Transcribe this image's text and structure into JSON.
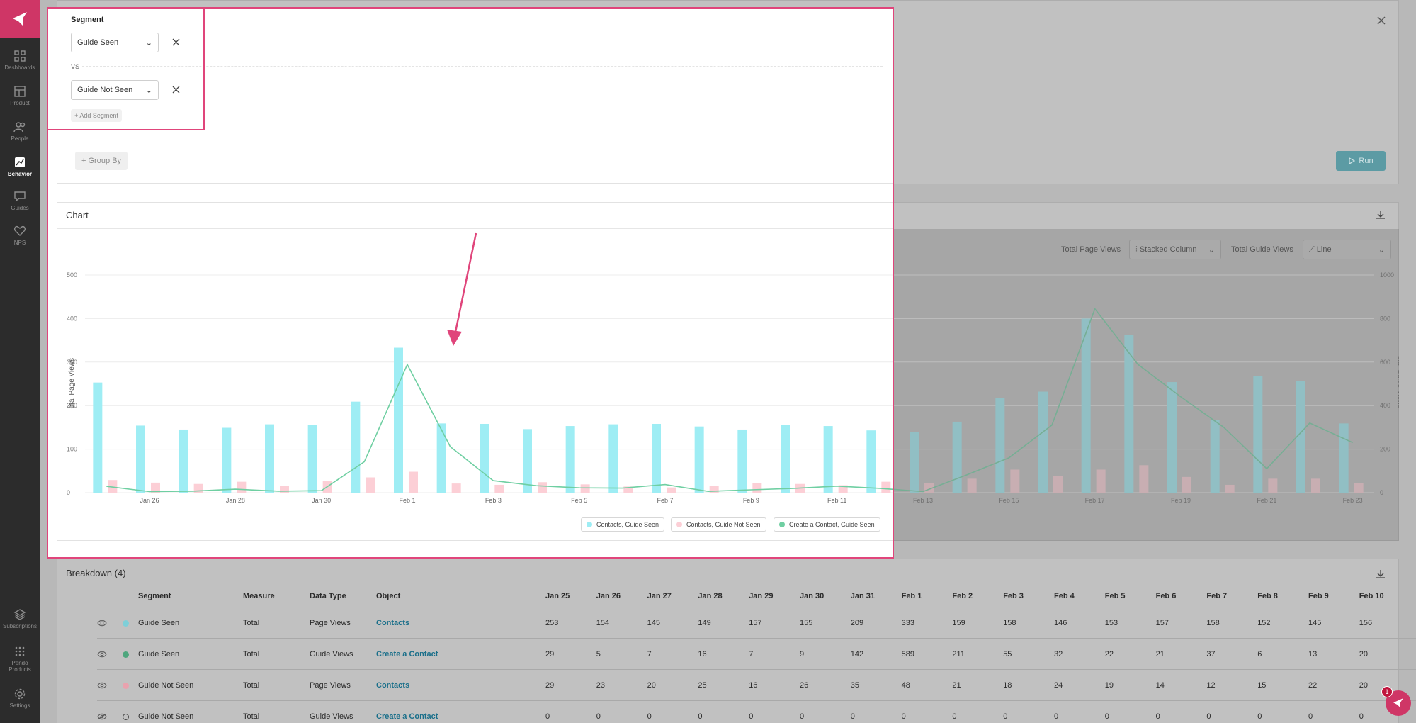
{
  "sidebar": {
    "items": [
      {
        "label": "Dashboards",
        "icon": "grid-icon"
      },
      {
        "label": "Product",
        "icon": "layout-icon"
      },
      {
        "label": "People",
        "icon": "people-icon"
      },
      {
        "label": "Behavior",
        "icon": "chart-icon"
      },
      {
        "label": "Guides",
        "icon": "message-icon"
      },
      {
        "label": "NPS",
        "icon": "heart-icon"
      }
    ],
    "bottom": [
      {
        "label": "Subscriptions",
        "icon": "layers-icon"
      },
      {
        "label": "Pendo Products",
        "icon": "dots-grid-icon"
      },
      {
        "label": "Settings",
        "icon": "gear-icon"
      }
    ]
  },
  "segment": {
    "title": "Segment",
    "first": "Guide Seen",
    "vs": "VS",
    "second": "Guide Not Seen",
    "add": "+ Add Segment",
    "group_by": "+ Group By",
    "run": "Run"
  },
  "chart_panel": {
    "title": "Chart",
    "left_measure_label": "Total Page Views",
    "left_measure_type": "Stacked Column",
    "right_measure_label": "Total Guide Views",
    "right_measure_type": "Line"
  },
  "chart_data": {
    "type": "bar",
    "ylabel": "Total Page Views",
    "y2label": "Total Guide Views",
    "ylim": [
      0,
      500
    ],
    "y2lim": [
      0,
      1000
    ],
    "yticks": [
      "0",
      "100",
      "200",
      "300",
      "400",
      "500"
    ],
    "y2ticks": [
      "0",
      "200",
      "400",
      "600",
      "800",
      "1000"
    ],
    "categories": [
      "Jan 25",
      "Jan 26",
      "Jan 27",
      "Jan 28",
      "Jan 29",
      "Jan 30",
      "Jan 31",
      "Feb 1",
      "Feb 2",
      "Feb 3",
      "Feb 4",
      "Feb 5",
      "Feb 6",
      "Feb 7",
      "Feb 8",
      "Feb 9",
      "Feb 10",
      "Feb 11",
      "Feb 12",
      "Feb 13",
      "Feb 14",
      "Feb 15",
      "Feb 16",
      "Feb 17",
      "Feb 18",
      "Feb 19",
      "Feb 20",
      "Feb 21",
      "Feb 22",
      "Feb 23"
    ],
    "xtick_labels": [
      "Jan 26",
      "Jan 28",
      "Jan 30",
      "Feb 1",
      "Feb 3",
      "Feb 5",
      "Feb 7",
      "Feb 9",
      "Feb 11",
      "Feb 13",
      "Feb 15",
      "Feb 17",
      "Feb 19",
      "Feb 21",
      "Feb 23"
    ],
    "series": [
      {
        "name": "Contacts, Guide Seen",
        "axis": "left",
        "kind": "bar",
        "color": "#9eedf4",
        "values": [
          253,
          154,
          145,
          149,
          157,
          155,
          209,
          333,
          159,
          158,
          146,
          153,
          157,
          158,
          152,
          145,
          156,
          153,
          143,
          140,
          163,
          218,
          232,
          400,
          362,
          254,
          167,
          268,
          257,
          159
        ]
      },
      {
        "name": "Contacts, Guide Not Seen",
        "axis": "left",
        "kind": "bar",
        "color": "#fccfd6",
        "values": [
          29,
          23,
          20,
          25,
          16,
          26,
          35,
          48,
          21,
          18,
          24,
          19,
          14,
          12,
          15,
          22,
          20,
          17,
          25,
          22,
          32,
          53,
          38,
          53,
          63,
          36,
          18,
          32,
          32,
          22
        ]
      },
      {
        "name": "Create a Contact, Guide Seen",
        "axis": "right",
        "kind": "line",
        "color": "#6fcfa2",
        "values": [
          29,
          5,
          7,
          16,
          7,
          9,
          142,
          589,
          211,
          55,
          32,
          22,
          21,
          37,
          6,
          13,
          20,
          30,
          20,
          5,
          80,
          160,
          310,
          845,
          590,
          440,
          300,
          110,
          320,
          230
        ]
      }
    ]
  },
  "breakdown": {
    "title": "Breakdown",
    "count": "(4)",
    "columns": [
      "Segment",
      "Measure",
      "Data Type",
      "Object",
      "Jan 25",
      "Jan 26",
      "Jan 27",
      "Jan 28",
      "Jan 29",
      "Jan 30",
      "Jan 31",
      "Feb 1",
      "Feb 2",
      "Feb 3",
      "Feb 4",
      "Feb 5",
      "Feb 6",
      "Feb 7",
      "Feb 8",
      "Feb 9",
      "Feb 10"
    ],
    "rows": [
      {
        "segment": "Guide Seen",
        "measure": "Total",
        "data_type": "Page Views",
        "object": "Contacts",
        "dot": "#7ecfd8",
        "visible": true,
        "values": [
          "253",
          "154",
          "145",
          "149",
          "157",
          "155",
          "209",
          "333",
          "159",
          "158",
          "146",
          "153",
          "157",
          "158",
          "152",
          "145",
          "156"
        ]
      },
      {
        "segment": "Guide Seen",
        "measure": "Total",
        "data_type": "Guide Views",
        "object": "Create a Contact",
        "dot": "#4ea67d",
        "visible": true,
        "values": [
          "29",
          "5",
          "7",
          "16",
          "7",
          "9",
          "142",
          "589",
          "211",
          "55",
          "32",
          "22",
          "21",
          "37",
          "6",
          "13",
          "20"
        ]
      },
      {
        "segment": "Guide Not Seen",
        "measure": "Total",
        "data_type": "Page Views",
        "object": "Contacts",
        "dot": "#e9a2ae",
        "visible": true,
        "values": [
          "29",
          "23",
          "20",
          "25",
          "16",
          "26",
          "35",
          "48",
          "21",
          "18",
          "24",
          "19",
          "14",
          "12",
          "15",
          "22",
          "20"
        ]
      },
      {
        "segment": "Guide Not Seen",
        "measure": "Total",
        "data_type": "Guide Views",
        "object": "Create a Contact",
        "dot": "none",
        "visible": false,
        "values": [
          "0",
          "0",
          "0",
          "0",
          "0",
          "0",
          "0",
          "0",
          "0",
          "0",
          "0",
          "0",
          "0",
          "0",
          "0",
          "0",
          "0"
        ]
      }
    ]
  },
  "notification_count": "1"
}
